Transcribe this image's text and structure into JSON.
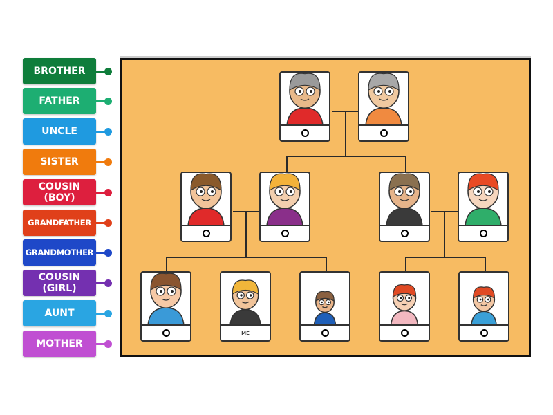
{
  "labels": [
    {
      "text": "BROTHER",
      "color": "#0f7d3b"
    },
    {
      "text": "FATHER",
      "color": "#1dae72"
    },
    {
      "text": "UNCLE",
      "color": "#1f9ae0"
    },
    {
      "text": "SISTER",
      "color": "#f07b0d"
    },
    {
      "text": "COUSIN (BOY)",
      "color": "#dd1f3e"
    },
    {
      "text": "GRANDFATHER",
      "color": "#e0401a"
    },
    {
      "text": "GRANDMOTHER",
      "color": "#1e48c8"
    },
    {
      "text": "COUSIN (GIRL)",
      "color": "#7430b0"
    },
    {
      "text": "AUNT",
      "color": "#2aa5e2"
    },
    {
      "text": "MOTHER",
      "color": "#c04fd2"
    }
  ],
  "cards": [
    {
      "id": "grandfather-card",
      "slot": "",
      "skin": "#e8b98a",
      "hair": "#9a9a9a",
      "shirt": "#e02a2a",
      "face_scale": 1
    },
    {
      "id": "grandmother-card",
      "slot": "",
      "skin": "#f0c9a0",
      "hair": "#a8a8a8",
      "shirt": "#f08a40",
      "face_scale": 1
    },
    {
      "id": "father-side-man-card",
      "slot": "",
      "skin": "#f1c49a",
      "hair": "#8a5a2b",
      "shirt": "#e02a2a",
      "face_scale": 1
    },
    {
      "id": "mother-card",
      "slot": "",
      "skin": "#f3cfae",
      "hair": "#f3b23a",
      "shirt": "#8a2f8a",
      "face_scale": 1
    },
    {
      "id": "uncle-card",
      "slot": "",
      "skin": "#e6b48a",
      "hair": "#8a7050",
      "shirt": "#3a3a3a",
      "face_scale": 1
    },
    {
      "id": "aunt-card",
      "slot": "",
      "skin": "#f6d6be",
      "hair": "#e84a24",
      "shirt": "#2fae6a",
      "face_scale": 1
    },
    {
      "id": "sister-card",
      "slot": "",
      "skin": "#f6c9a6",
      "hair": "#8a5530",
      "shirt": "#3a9ad8",
      "face_scale": 1
    },
    {
      "id": "me-card",
      "slot": "ME",
      "skin": "#f1c49a",
      "hair": "#f1b63a",
      "shirt": "#3a3a3a",
      "face_scale": 0.85
    },
    {
      "id": "brother-card",
      "slot": "",
      "skin": "#eab58a",
      "hair": "#8a6040",
      "shirt": "#1f5fb8",
      "face_scale": 0.6
    },
    {
      "id": "cousin-girl-card",
      "slot": "",
      "skin": "#f6d0b4",
      "hair": "#e04a24",
      "shirt": "#f2b8c0",
      "face_scale": 0.75
    },
    {
      "id": "cousin-boy-card",
      "slot": "",
      "skin": "#f3c7a4",
      "hair": "#e04a24",
      "shirt": "#3aa0d8",
      "face_scale": 0.7
    }
  ]
}
